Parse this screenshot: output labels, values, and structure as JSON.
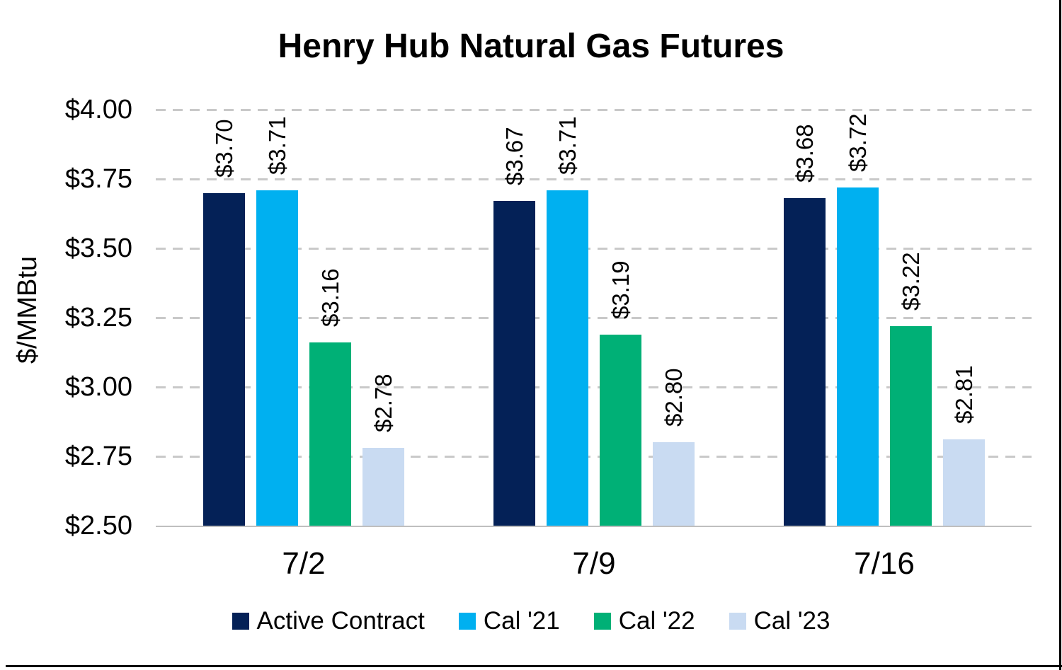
{
  "title": "Henry Hub Natural Gas Futures",
  "chart_data": {
    "type": "bar",
    "title": "Henry Hub Natural Gas Futures",
    "ylabel": "$/MMBtu",
    "xlabel": "",
    "ylim": [
      2.5,
      4.0
    ],
    "ytick_step": 0.25,
    "y_tick_labels": [
      "$4.00",
      "$3.75",
      "$3.50",
      "$3.25",
      "$3.00",
      "$2.75",
      "$2.50"
    ],
    "categories": [
      "7/2",
      "7/9",
      "7/16"
    ],
    "series": [
      {
        "name": "Active Contract",
        "color": "#042157",
        "values": [
          3.7,
          3.67,
          3.68
        ],
        "value_labels": [
          "$3.70",
          "$3.67",
          "$3.68"
        ]
      },
      {
        "name": "Cal '21",
        "color": "#00b0f0",
        "values": [
          3.71,
          3.71,
          3.72
        ],
        "value_labels": [
          "$3.71",
          "$3.71",
          "$3.72"
        ]
      },
      {
        "name": "Cal '22",
        "color": "#00b076",
        "values": [
          3.16,
          3.19,
          3.22
        ],
        "value_labels": [
          "$3.16",
          "$3.19",
          "$3.22"
        ]
      },
      {
        "name": "Cal '23",
        "color": "#c9dbf2",
        "values": [
          2.78,
          2.8,
          2.81
        ],
        "value_labels": [
          "$2.78",
          "$2.80",
          "$2.81"
        ]
      }
    ],
    "grid": "horizontal-dashed",
    "legend_position": "bottom",
    "value_label_rotation_deg": 90
  },
  "colors": {
    "gridline": "#c9c9c9",
    "axis_line": "#bfbfbf",
    "text": "#000000",
    "frame_border": "#000000"
  }
}
